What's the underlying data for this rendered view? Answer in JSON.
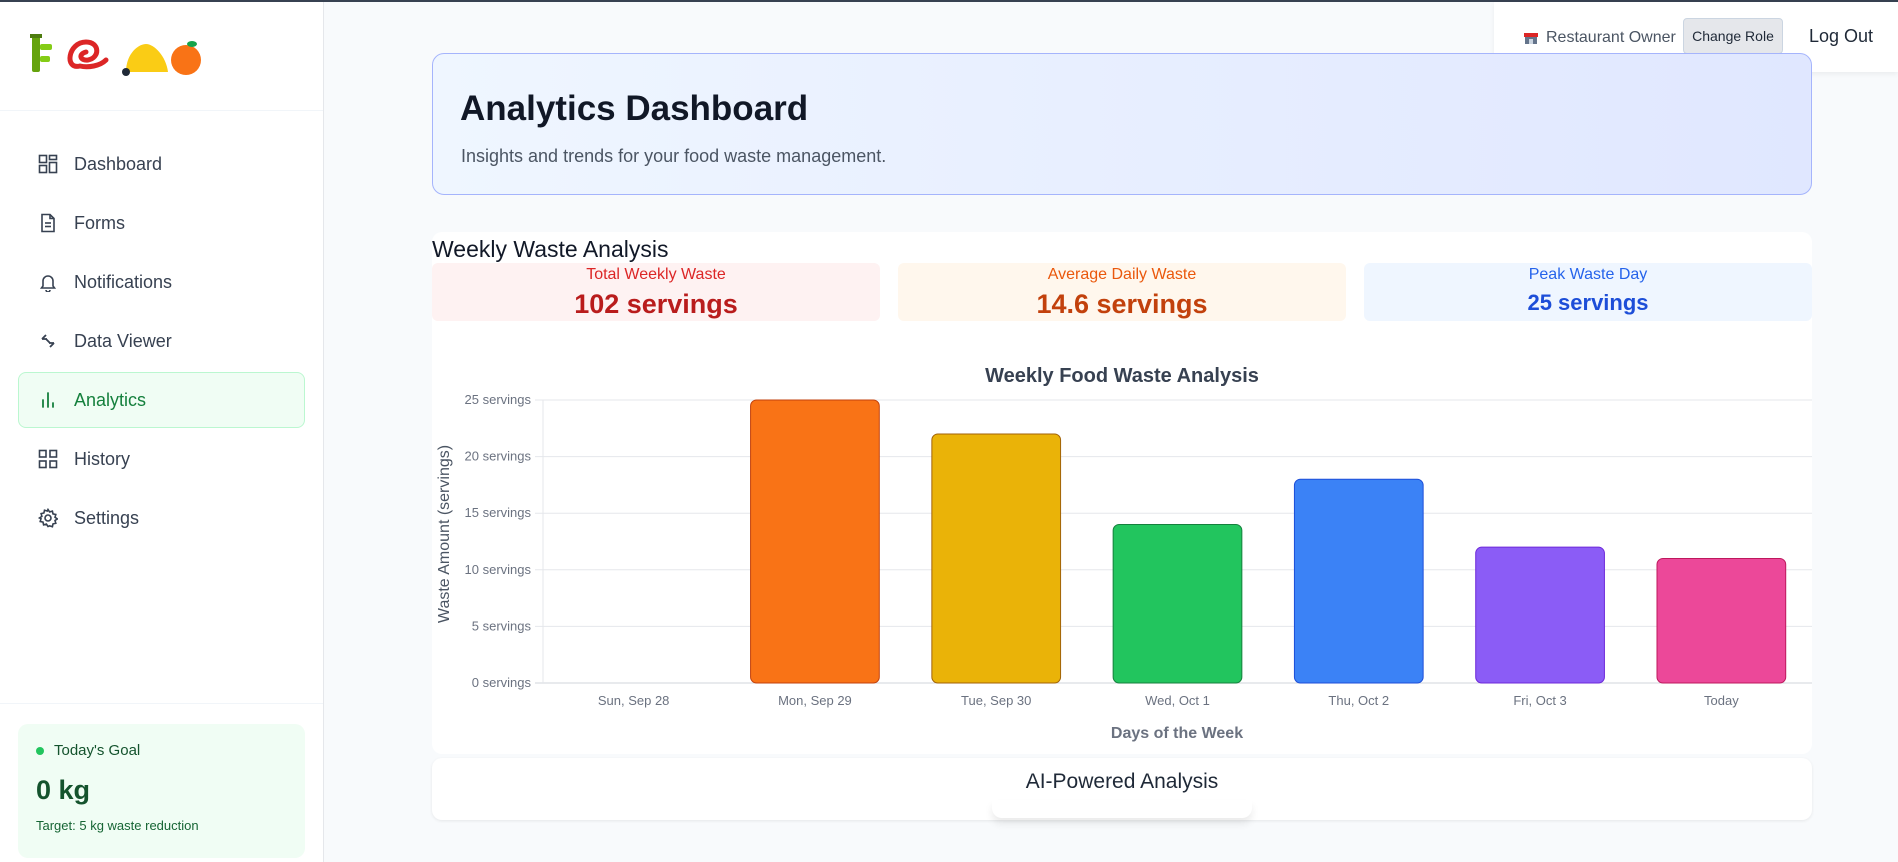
{
  "sidebar": {
    "nav": [
      {
        "label": "Dashboard",
        "icon": "grid-icon"
      },
      {
        "label": "Forms",
        "icon": "document-icon"
      },
      {
        "label": "Notifications",
        "icon": "bell-icon"
      },
      {
        "label": "Data Viewer",
        "icon": "arrows-swap-icon"
      },
      {
        "label": "Analytics",
        "icon": "bar-chart-icon",
        "active": true
      },
      {
        "label": "History",
        "icon": "squares-icon"
      },
      {
        "label": "Settings",
        "icon": "gear-icon"
      }
    ],
    "goal": {
      "title": "Today's Goal",
      "value": "0 kg",
      "target": "Target: 5 kg waste reduction"
    }
  },
  "rolebar": {
    "role": "Restaurant Owner",
    "change_role": "Change Role",
    "logout": "Log Out"
  },
  "header": {
    "title": "Analytics Dashboard",
    "subtitle": "Insights and trends for your food waste management."
  },
  "weekly": {
    "title": "Weekly Waste Analysis",
    "stats": {
      "total": {
        "label": "Total Weekly Waste",
        "value": "102 servings"
      },
      "average": {
        "label": "Average Daily Waste",
        "value": "14.6 servings"
      },
      "peak": {
        "label": "Peak Waste Day",
        "value": "25 servings"
      }
    }
  },
  "chart_data": {
    "type": "bar",
    "title": "Weekly Food Waste Analysis",
    "xlabel": "Days of the Week",
    "ylabel": "Waste Amount (servings)",
    "categories": [
      "Sun, Sep 28",
      "Mon, Sep 29",
      "Tue, Sep 30",
      "Wed, Oct 1",
      "Thu, Oct 2",
      "Fri, Oct 3",
      "Today"
    ],
    "values": [
      0,
      25,
      22,
      14,
      18,
      12,
      11
    ],
    "ylim": [
      0,
      25
    ],
    "yticks": [
      "0 servings",
      "5 servings",
      "10 servings",
      "15 servings",
      "20 servings",
      "25 servings"
    ],
    "colors": [
      "#f97316",
      "#f97316",
      "#eab308",
      "#22c55e",
      "#3b82f6",
      "#8b5cf6",
      "#ec4899"
    ],
    "border_colors": [
      "#c2410c",
      "#c2410c",
      "#a16207",
      "#15803d",
      "#1d4ed8",
      "#6d28d9",
      "#be185d"
    ],
    "grid": true
  },
  "ai": {
    "title": "AI-Powered Analysis"
  }
}
